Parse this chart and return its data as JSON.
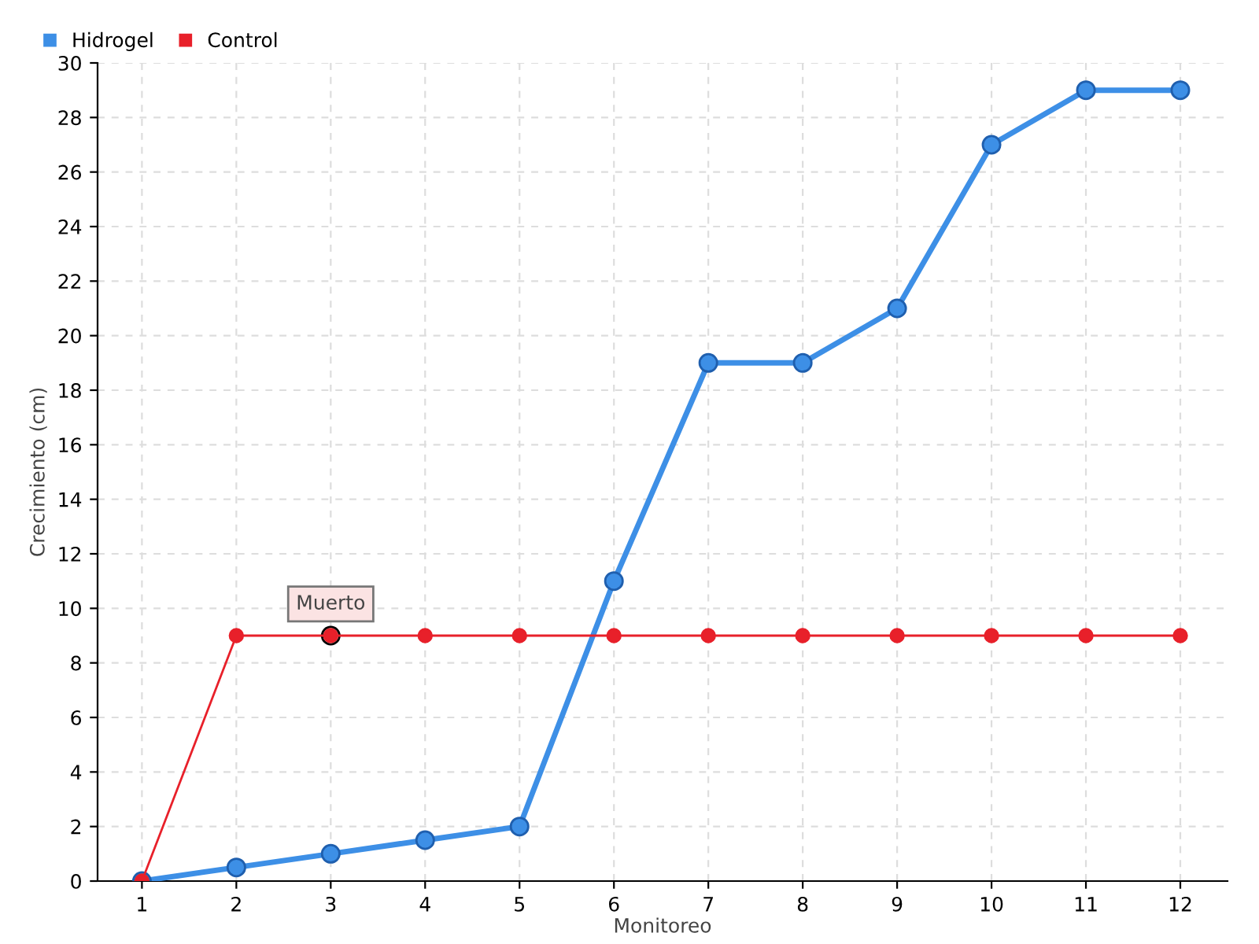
{
  "chart_data": {
    "type": "line",
    "xlabel": "Monitoreo",
    "ylabel": "Crecimiento (cm)",
    "categories": [
      "1",
      "2",
      "3",
      "4",
      "5",
      "6",
      "7",
      "8",
      "9",
      "10",
      "11",
      "12"
    ],
    "series": [
      {
        "name": "Hidrogel",
        "color": "#3d8fe6",
        "values": [
          0,
          0.5,
          1,
          1.5,
          2,
          11,
          19,
          19,
          21,
          27,
          29,
          29
        ]
      },
      {
        "name": "Control",
        "color": "#e8202a",
        "values": [
          0,
          9,
          9,
          9,
          9,
          9,
          9,
          9,
          9,
          9,
          9,
          9
        ]
      }
    ],
    "annotations": [
      {
        "text": "Muerto",
        "x": "3",
        "y": 9
      }
    ],
    "ylim": [
      0,
      30
    ],
    "yticks": [
      0,
      2,
      4,
      6,
      8,
      10,
      12,
      14,
      16,
      18,
      20,
      22,
      24,
      26,
      28,
      30
    ],
    "grid": true,
    "legend": "top left",
    "marker": "circle",
    "line_style": "solid"
  }
}
